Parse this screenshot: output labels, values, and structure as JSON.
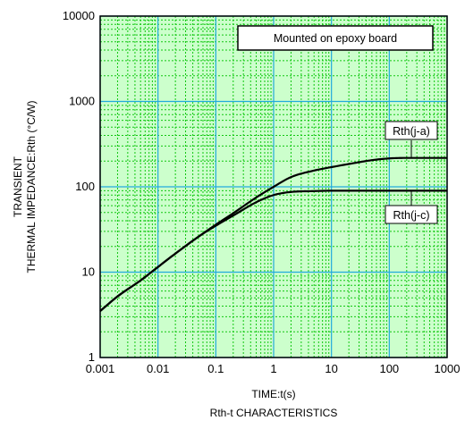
{
  "chart_data": {
    "type": "line",
    "title": "Rth-t CHARACTERISTICS",
    "xlabel": "TIME:t(s)",
    "ylabel_lines": [
      "TRANSIENT",
      "THERMAL IMPEDANCE:Rth (°C/W)"
    ],
    "x_scale": "log",
    "y_scale": "log",
    "xlim": [
      0.001,
      1000
    ],
    "ylim": [
      1,
      10000
    ],
    "x_ticks": [
      {
        "value": 0.001,
        "label": "0.001"
      },
      {
        "value": 0.01,
        "label": "0.01"
      },
      {
        "value": 0.1,
        "label": "0.1"
      },
      {
        "value": 1,
        "label": "1"
      },
      {
        "value": 10,
        "label": "10"
      },
      {
        "value": 100,
        "label": "100"
      },
      {
        "value": 1000,
        "label": "1000"
      }
    ],
    "y_ticks": [
      {
        "value": 1,
        "label": "1"
      },
      {
        "value": 10,
        "label": "10"
      },
      {
        "value": 100,
        "label": "100"
      },
      {
        "value": 1000,
        "label": "1000"
      },
      {
        "value": 10000,
        "label": "10000"
      }
    ],
    "grid": true,
    "annotation": "Mounted on epoxy board",
    "colors": {
      "plot_background": "#ccffcc",
      "minor_grid": "#11c711",
      "major_grid": "#22aadd",
      "series": "#000000"
    },
    "series": [
      {
        "name": "Rth(j-a)",
        "x": [
          0.001,
          0.002,
          0.005,
          0.01,
          0.02,
          0.05,
          0.1,
          0.2,
          0.5,
          1,
          2,
          5,
          10,
          20,
          50,
          100,
          200,
          500,
          1000
        ],
        "y": [
          3.5,
          5.2,
          8.0,
          11.5,
          16.5,
          26,
          36,
          49,
          75,
          100,
          130,
          155,
          170,
          185,
          205,
          215,
          218,
          218,
          218
        ]
      },
      {
        "name": "Rth(j-c)",
        "x": [
          0.001,
          0.002,
          0.005,
          0.01,
          0.02,
          0.05,
          0.1,
          0.2,
          0.5,
          1,
          2,
          5,
          10,
          20,
          50,
          100,
          200,
          500,
          1000
        ],
        "y": [
          3.5,
          5.2,
          8.0,
          11.5,
          16.5,
          26,
          35,
          46,
          66,
          80,
          87,
          89,
          90,
          90,
          90,
          90,
          90,
          90,
          90
        ]
      }
    ]
  }
}
